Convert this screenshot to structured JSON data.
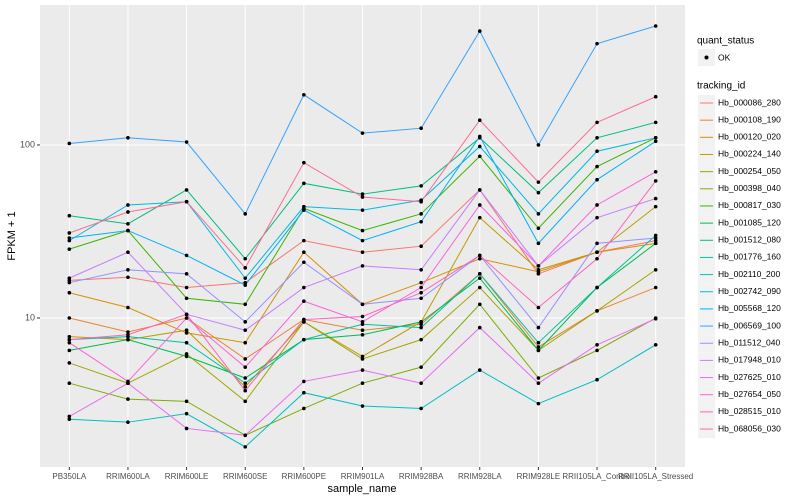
{
  "chart_data": {
    "type": "line",
    "x_label": "sample_name",
    "y_label": "FPKM + 1",
    "log_y": true,
    "grid": true,
    "ylim": [
      1.377,
      644
    ],
    "yticks": [
      10,
      100
    ],
    "legend": {
      "position": "right",
      "title": "tracking_id"
    },
    "status_legend": {
      "title": "quant_status",
      "labels": [
        "OK"
      ]
    },
    "categories": [
      "PB350LA",
      "RRIM600LA",
      "RRIM600LE",
      "RRIM600SE",
      "RRIM600PE",
      "RRIM901LA",
      "RRIM928BA",
      "RRIM928LA",
      "RRIM928LE",
      "RRII105LA_Control",
      "RRII105LA_Stressed"
    ],
    "series": [
      {
        "name": "Hb_000086_280",
        "color": "#F8766D",
        "values": [
          16.5,
          17.2,
          15,
          16,
          28,
          24,
          26,
          55,
          18,
          24,
          28
        ]
      },
      {
        "name": "Hb_000108_190",
        "color": "#EA8331",
        "values": [
          10,
          8.3,
          10,
          5.8,
          9.8,
          8.5,
          9.2,
          18,
          6.8,
          11,
          15
        ]
      },
      {
        "name": "Hb_000120_020",
        "color": "#D89000",
        "values": [
          14,
          11.5,
          8.2,
          7.2,
          24,
          12,
          16,
          22,
          18.5,
          24,
          27
        ]
      },
      {
        "name": "Hb_000224_140",
        "color": "#C09B00",
        "values": [
          7.8,
          7.5,
          8.5,
          4,
          9.5,
          6,
          9.5,
          38,
          19,
          24,
          44
        ]
      },
      {
        "name": "Hb_000254_050",
        "color": "#A3A500",
        "values": [
          5.5,
          4.2,
          6.2,
          3.3,
          9.5,
          5.8,
          7.5,
          15,
          6.5,
          11,
          19
        ]
      },
      {
        "name": "Hb_000398_040",
        "color": "#7CAE00",
        "values": [
          4.2,
          3.4,
          3.3,
          2.1,
          3.0,
          4.2,
          5.2,
          12,
          4.5,
          6.5,
          10
        ]
      },
      {
        "name": "Hb_000817_030",
        "color": "#39B600",
        "values": [
          25,
          32,
          13,
          12,
          43,
          32,
          40,
          86,
          33,
          75,
          110
        ]
      },
      {
        "name": "Hb_001085_120",
        "color": "#00BB4E",
        "values": [
          6.5,
          7.5,
          6,
          4.5,
          7.5,
          8,
          9.5,
          17,
          6.5,
          15,
          27
        ]
      },
      {
        "name": "Hb_001512_080",
        "color": "#00BF7D",
        "values": [
          39,
          35,
          55,
          22,
          60,
          52,
          58,
          110,
          53,
          110,
          135
        ]
      },
      {
        "name": "Hb_001776_160",
        "color": "#00C1A3",
        "values": [
          7.5,
          7.8,
          7.2,
          4.2,
          7.5,
          9.2,
          8.8,
          18,
          7.2,
          15,
          30
        ]
      },
      {
        "name": "Hb_002110_200",
        "color": "#00BFC4",
        "values": [
          2.6,
          2.5,
          2.8,
          1.8,
          3.7,
          3.1,
          3.0,
          5.0,
          3.2,
          4.4,
          7
        ]
      },
      {
        "name": "Hb_002742_090",
        "color": "#00BAE0",
        "values": [
          28,
          45,
          47,
          17,
          44,
          42,
          48,
          98,
          40,
          92,
          110
        ]
      },
      {
        "name": "Hb_005568_120",
        "color": "#00B0F6",
        "values": [
          29,
          32,
          23,
          15.5,
          42,
          28,
          36,
          112,
          27,
          63,
          105
        ]
      },
      {
        "name": "Hb_006569_100",
        "color": "#35A2FF",
        "values": [
          102,
          110,
          104,
          40,
          195,
          117,
          125,
          455,
          100,
          385,
          487
        ]
      },
      {
        "name": "Hb_011512_040",
        "color": "#9590FF",
        "values": [
          16,
          19,
          18,
          9.5,
          21,
          12,
          13,
          23,
          8.8,
          27,
          29
        ]
      },
      {
        "name": "Hb_017948_010",
        "color": "#C77CFF",
        "values": [
          17,
          24,
          10.5,
          8.5,
          15,
          20,
          19,
          55,
          20,
          38,
          49
        ]
      },
      {
        "name": "Hb_027625_010",
        "color": "#E76BF3",
        "values": [
          2.7,
          4.2,
          2.3,
          2.1,
          4.3,
          5,
          4.2,
          8.8,
          4.2,
          7,
          9.9
        ]
      },
      {
        "name": "Hb_027654_050",
        "color": "#FA62DB",
        "values": [
          7.2,
          4.3,
          10,
          5.2,
          12.5,
          9.5,
          15,
          45,
          20,
          45,
          70
        ]
      },
      {
        "name": "Hb_028515_010",
        "color": "#FF62BC",
        "values": [
          7.5,
          8,
          10.5,
          3.8,
          9.8,
          10.2,
          14,
          23,
          11.5,
          22,
          62
        ]
      },
      {
        "name": "Hb_068056_030",
        "color": "#FF6C91",
        "values": [
          31,
          41,
          47,
          19.5,
          79,
          50,
          47,
          139,
          61,
          135,
          190
        ]
      }
    ]
  }
}
